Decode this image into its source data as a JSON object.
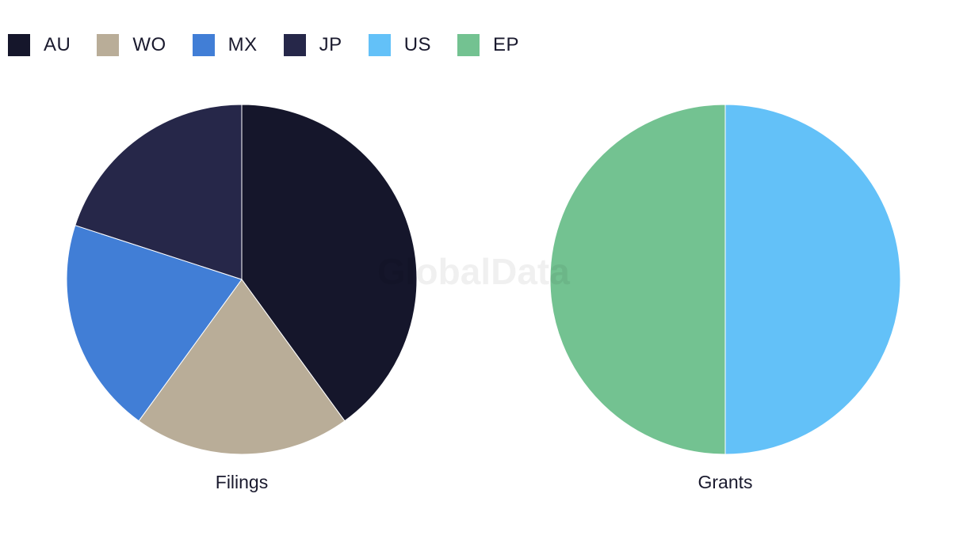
{
  "watermark": "GlobalData",
  "legend": [
    {
      "label": "AU",
      "color": "#15162b"
    },
    {
      "label": "WO",
      "color": "#b9ad98"
    },
    {
      "label": "MX",
      "color": "#417ed6"
    },
    {
      "label": "JP",
      "color": "#262749"
    },
    {
      "label": "US",
      "color": "#63c1f8"
    },
    {
      "label": "EP",
      "color": "#73c291"
    }
  ],
  "chart_data": [
    {
      "type": "pie",
      "title": "Filings",
      "slices": [
        {
          "name": "AU",
          "value": 2,
          "color": "#15162b"
        },
        {
          "name": "WO",
          "value": 1,
          "color": "#b9ad98"
        },
        {
          "name": "MX",
          "value": 1,
          "color": "#417ed6"
        },
        {
          "name": "JP",
          "value": 1,
          "color": "#262749"
        }
      ]
    },
    {
      "type": "pie",
      "title": "Grants",
      "slices": [
        {
          "name": "US",
          "value": 1,
          "color": "#63c1f8"
        },
        {
          "name": "EP",
          "value": 1,
          "color": "#73c291"
        }
      ]
    }
  ]
}
